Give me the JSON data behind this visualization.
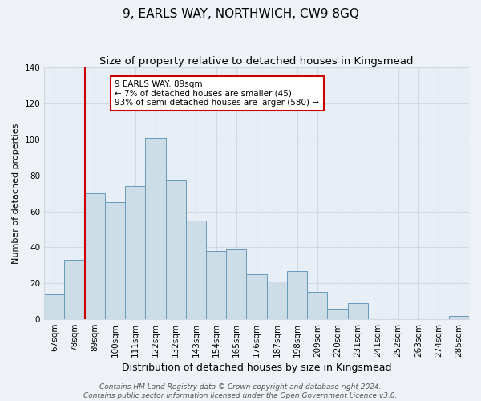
{
  "title": "9, EARLS WAY, NORTHWICH, CW9 8GQ",
  "subtitle": "Size of property relative to detached houses in Kingsmead",
  "xlabel": "Distribution of detached houses by size in Kingsmead",
  "ylabel": "Number of detached properties",
  "bar_labels": [
    "67sqm",
    "78sqm",
    "89sqm",
    "100sqm",
    "111sqm",
    "122sqm",
    "132sqm",
    "143sqm",
    "154sqm",
    "165sqm",
    "176sqm",
    "187sqm",
    "198sqm",
    "209sqm",
    "220sqm",
    "231sqm",
    "241sqm",
    "252sqm",
    "263sqm",
    "274sqm",
    "285sqm"
  ],
  "bar_values": [
    14,
    33,
    70,
    65,
    74,
    101,
    77,
    55,
    38,
    39,
    25,
    21,
    27,
    15,
    6,
    9,
    0,
    0,
    0,
    0,
    2
  ],
  "bar_color": "#ccdde8",
  "bar_edge_color": "#6699bb",
  "vline_color": "#cc0000",
  "vline_pos": 2,
  "ylim": [
    0,
    140
  ],
  "yticks": [
    0,
    20,
    40,
    60,
    80,
    100,
    120,
    140
  ],
  "annotation_title": "9 EARLS WAY: 89sqm",
  "annotation_line1": "← 7% of detached houses are smaller (45)",
  "annotation_line2": "93% of semi-detached houses are larger (580) →",
  "annotation_box_color": "#ffffff",
  "annotation_box_edge": "#cc0000",
  "footer_line1": "Contains HM Land Registry data © Crown copyright and database right 2024.",
  "footer_line2": "Contains public sector information licensed under the Open Government Licence v3.0.",
  "bg_color": "#eef2f7",
  "plot_bg_color": "#e8eef5",
  "grid_color": "#d0d8e4",
  "title_fontsize": 11,
  "subtitle_fontsize": 9.5,
  "xlabel_fontsize": 9,
  "ylabel_fontsize": 8,
  "tick_fontsize": 7.5,
  "footer_fontsize": 6.5
}
